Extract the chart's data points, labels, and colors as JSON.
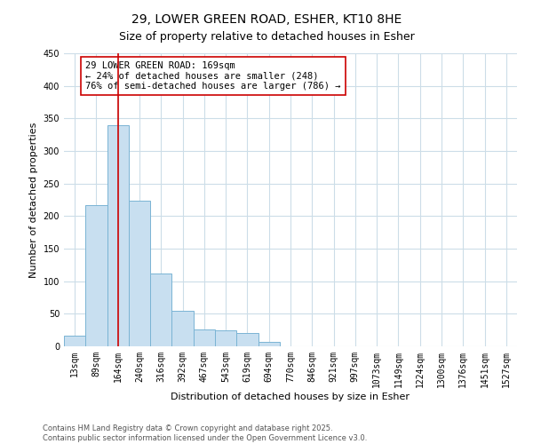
{
  "title": "29, LOWER GREEN ROAD, ESHER, KT10 8HE",
  "subtitle": "Size of property relative to detached houses in Esher",
  "xlabel": "Distribution of detached houses by size in Esher",
  "ylabel": "Number of detached properties",
  "bar_labels": [
    "13sqm",
    "89sqm",
    "164sqm",
    "240sqm",
    "316sqm",
    "392sqm",
    "467sqm",
    "543sqm",
    "619sqm",
    "694sqm",
    "770sqm",
    "846sqm",
    "921sqm",
    "997sqm",
    "1073sqm",
    "1149sqm",
    "1224sqm",
    "1300sqm",
    "1376sqm",
    "1451sqm",
    "1527sqm"
  ],
  "bar_values": [
    17,
    217,
    340,
    223,
    112,
    55,
    26,
    25,
    21,
    7,
    0,
    0,
    0,
    0,
    0,
    0,
    0,
    0,
    0,
    0,
    0
  ],
  "bar_color": "#c8dff0",
  "bar_edge_color": "#7ab4d4",
  "vline_x_idx": 2,
  "vline_color": "#cc0000",
  "annotation_line1": "29 LOWER GREEN ROAD: 169sqm",
  "annotation_line2": "← 24% of detached houses are smaller (248)",
  "annotation_line3": "76% of semi-detached houses are larger (786) →",
  "annotation_box_color": "#ffffff",
  "annotation_box_edge": "#cc0000",
  "ylim": [
    0,
    450
  ],
  "yticks": [
    0,
    50,
    100,
    150,
    200,
    250,
    300,
    350,
    400,
    450
  ],
  "bg_color": "#ffffff",
  "grid_color": "#ccdde8",
  "footer_line1": "Contains HM Land Registry data © Crown copyright and database right 2025.",
  "footer_line2": "Contains public sector information licensed under the Open Government Licence v3.0.",
  "title_fontsize": 10,
  "subtitle_fontsize": 9,
  "xlabel_fontsize": 8,
  "ylabel_fontsize": 8,
  "tick_fontsize": 7,
  "annotation_fontsize": 7.5,
  "footer_fontsize": 6
}
